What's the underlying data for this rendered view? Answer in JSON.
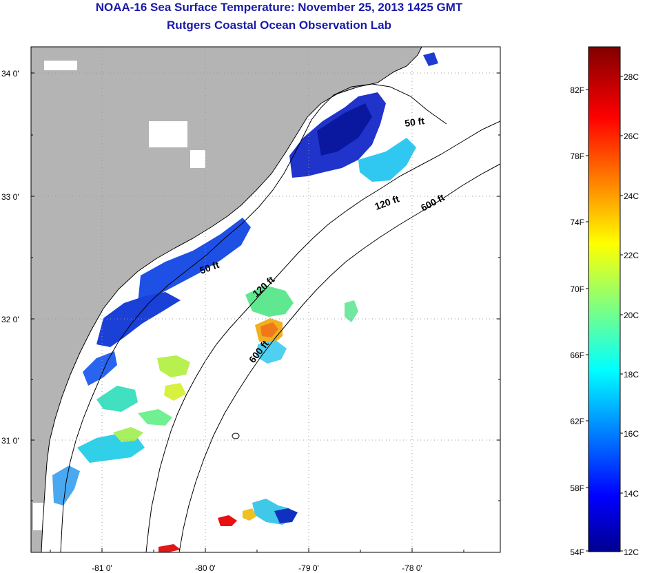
{
  "header": {
    "title": "NOAA-16 Sea Surface Temperature:  November 25, 2013 1425 GMT",
    "subtitle": "Rutgers Coastal Ocean Observation Lab"
  },
  "map": {
    "lon_labels": [
      "-81 0'",
      "-80 0'",
      "-79 0'",
      "-78 0'"
    ],
    "lat_labels": [
      "34 0'",
      "33 0'",
      "32 0'",
      "31 0'"
    ],
    "isobath_labels": [
      "50 ft",
      "120 ft",
      "600 ft",
      "50 ft",
      "120 ft",
      "600 ft"
    ],
    "land_color": "#b4b4b4",
    "ocean_color": "#ffffff"
  },
  "colorbar": {
    "fahrenheit_labels": [
      "82F",
      "78F",
      "74F",
      "70F",
      "66F",
      "62F",
      "58F",
      "54F"
    ],
    "celsius_labels": [
      "28C",
      "26C",
      "24C",
      "22C",
      "20C",
      "18C",
      "16C",
      "14C",
      "12C"
    ],
    "range_c": [
      12,
      29
    ],
    "colormap": "jet"
  }
}
